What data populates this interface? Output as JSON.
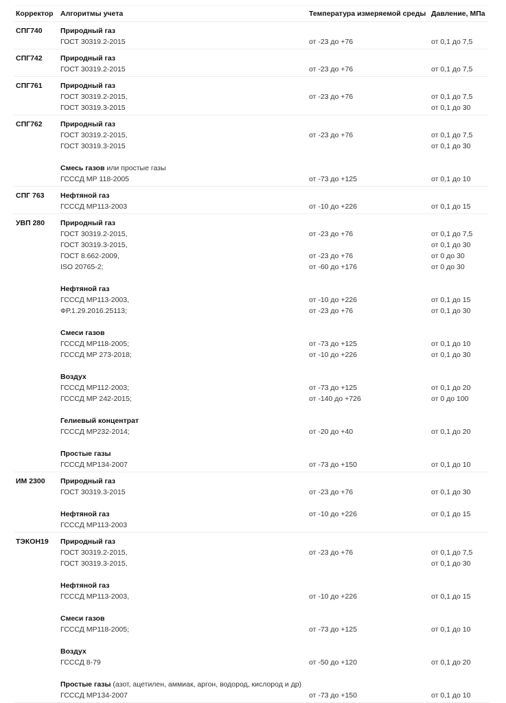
{
  "header": {
    "corrector": "Корректор",
    "algorithms": "Алгоритмы учета",
    "temperature": "Температура измеряемой среды",
    "pressure": "Давление, МПа"
  },
  "rows": [
    {
      "name": "СПГ740",
      "lines": [
        {
          "b": "Природный газ"
        },
        {
          "t": "ГОСТ 30319.2-2015",
          "temp": "от -23 до +76",
          "p": "от 0,1 до 7,5"
        }
      ]
    },
    {
      "name": "СПГ742",
      "lines": [
        {
          "b": "Природный газ"
        },
        {
          "t": "ГОСТ 30319.2-2015",
          "temp": "от -23 до +76",
          "p": "от 0,1 до 7,5"
        }
      ]
    },
    {
      "name": "СПГ761",
      "lines": [
        {
          "b": "Природный газ"
        },
        {
          "t": "ГОСТ 30319.2-2015,",
          "temp": "от -23 до +76",
          "p": "от 0,1 до 7,5"
        },
        {
          "t": "ГОСТ 30319.3-2015",
          "p": "от 0,1 до 30"
        }
      ]
    },
    {
      "name": "СПГ762",
      "lines": [
        {
          "b": "Природный газ"
        },
        {
          "t": "ГОСТ 30319.2-2015,",
          "temp": "от -23 до +76",
          "p": "от 0,1 до 7,5"
        },
        {
          "t": "ГОСТ 30319.3-2015",
          "p": "от 0,1 до 30"
        },
        {},
        {
          "b": "Смесь газов",
          "t": " или простые газы"
        },
        {
          "t": "ГСССД МР 118-2005",
          "temp": "от -73 до +125",
          "p": "от 0,1 до 10"
        }
      ]
    },
    {
      "name": "СПГ 763",
      "lines": [
        {
          "b": "Нефтяной газ"
        },
        {
          "t": "ГСССД МР113-2003",
          "temp": "от -10 до +226",
          "p": "от 0,1 до 15"
        }
      ]
    },
    {
      "name": "УВП 280",
      "lines": [
        {
          "b": "Природный газ"
        },
        {
          "t": "ГОСТ 30319.2-2015,",
          "temp": "от -23 до +76",
          "p": "от 0,1 до 7,5"
        },
        {
          "t": "ГОСТ 30319.3-2015,",
          "p": "от 0,1 до 30"
        },
        {
          "t": "ГОСТ 8.662-2009,",
          "temp": "от -23 до +76",
          "p": "от 0 до 30"
        },
        {
          "t": "ISO 20765-2;",
          "temp": "от -60 до +176",
          "p": "от 0 до 30"
        },
        {},
        {
          "b": "Нефтяной газ"
        },
        {
          "t": "ГСССД МР113-2003,",
          "temp": "от -10 до +226",
          "p": "от 0,1 до 15"
        },
        {
          "t": "ФР.1.29.2016.25113;",
          "temp": "от -23 до +76",
          "p": "от 0,1 до 30"
        },
        {},
        {
          "b": "Смеси газов"
        },
        {
          "t": "ГСССД МР118-2005;",
          "temp": "от -73 до +125",
          "p": "от 0,1 до 10"
        },
        {
          "t": "ГСССД МР 273-2018;",
          "temp": "от -10 до +226",
          "p": "от 0,1 до 30"
        },
        {},
        {
          "b": "Воздух"
        },
        {
          "t": "ГСССД МР112-2003;",
          "temp": "от -73 до +125",
          "p": "от 0,1 до 20"
        },
        {
          "t": "ГСССД МР 242-2015;",
          "temp": "от -140 до +726",
          "p": "от 0 до 100"
        },
        {},
        {
          "b": "Гелиевый концентрат"
        },
        {
          "t": "ГСССД МР232-2014;",
          "temp": "от -20 до +40",
          "p": "от 0,1 до 20"
        },
        {},
        {
          "b": "Простые газы"
        },
        {
          "t": "ГСССД МР134-2007",
          "temp": "от -73 до +150",
          "p": "от 0,1 до 10"
        }
      ]
    },
    {
      "name": "ИМ 2300",
      "lines": [
        {
          "b": "Природный газ"
        },
        {
          "t": "ГОСТ 30319.3-2015",
          "temp": "от -23 до +76",
          "p": "от 0,1 до 30"
        },
        {},
        {
          "b": "Нефтяной газ",
          "temp": "от -10 до +226",
          "p": "от 0,1 до 15"
        },
        {
          "t": "ГСССД МР113-2003"
        }
      ]
    },
    {
      "name": "ТЭКОН19",
      "lines": [
        {
          "b": "Природный газ"
        },
        {
          "t": "ГОСТ 30319.2-2015,",
          "temp": "от -23 до +76",
          "p": "от 0,1 до 7,5"
        },
        {
          "t": "ГОСТ 30319.3-2015,",
          "p": "от 0,1 до 30"
        },
        {},
        {
          "b": "Нефтяной газ"
        },
        {
          "t": "ГСССД МР113-2003,",
          "temp": "от -10 до +226",
          "p": "от 0,1 до 15"
        },
        {},
        {
          "b": "Смеси газов"
        },
        {
          "t": "ГСССД МР118-2005;",
          "temp": "от -73 до +125",
          "p": "от 0,1 до 10"
        },
        {},
        {
          "b": "Воздух"
        },
        {
          "t": "ГСССД 8-79",
          "temp": "от -50 до +120",
          "p": "от 0,1 до 20"
        },
        {},
        {
          "b": "Простые газы",
          "t": " (азот, ацетилен, аммиак, аргон, водород, кислород и др)"
        },
        {
          "t": "ГСССД МР134-2007",
          "temp": "от -73 до +150",
          "p": "от 0,1 до 10"
        }
      ]
    }
  ]
}
